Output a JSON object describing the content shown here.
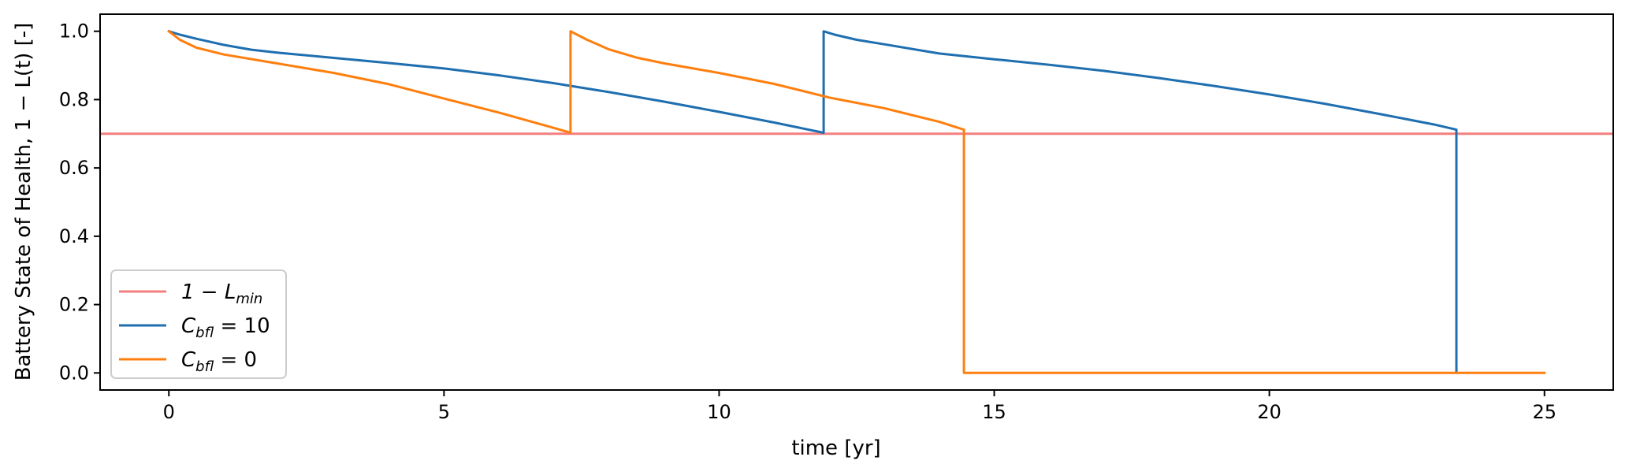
{
  "chart_data": {
    "type": "line",
    "xlabel": "time [yr]",
    "ylabel": "Battery State of Health, 1 − L(t) [-]",
    "xlim": [
      -1.25,
      26.25
    ],
    "ylim": [
      -0.05,
      1.05
    ],
    "xticks": [
      0,
      5,
      10,
      15,
      20,
      25
    ],
    "yticks": [
      0.0,
      0.2,
      0.4,
      0.6,
      0.8,
      1.0
    ],
    "grid": false,
    "legend_position": "lower-left",
    "hline": {
      "name": "1 − L_min",
      "name_base": "1 − L",
      "name_sub": "min",
      "y": 0.7,
      "color": "#f47f7f"
    },
    "series": [
      {
        "name": "C_bfl = 10",
        "name_base": "C",
        "name_sub": "bfl",
        "name_suffix": " = 10",
        "color": "#1f6fb0",
        "points": [
          [
            0,
            1.0
          ],
          [
            0.2,
            0.99
          ],
          [
            0.5,
            0.978
          ],
          [
            1.0,
            0.96
          ],
          [
            1.5,
            0.946
          ],
          [
            2.0,
            0.937
          ],
          [
            3.0,
            0.922
          ],
          [
            4.0,
            0.907
          ],
          [
            5.0,
            0.891
          ],
          [
            6.0,
            0.871
          ],
          [
            7.0,
            0.848
          ],
          [
            8.0,
            0.822
          ],
          [
            9.0,
            0.794
          ],
          [
            10.0,
            0.764
          ],
          [
            11.0,
            0.733
          ],
          [
            11.9,
            0.703
          ],
          [
            11.9,
            1.0
          ],
          [
            12.1,
            0.99
          ],
          [
            12.5,
            0.975
          ],
          [
            13.0,
            0.962
          ],
          [
            14.0,
            0.935
          ],
          [
            15.0,
            0.918
          ],
          [
            16.0,
            0.902
          ],
          [
            17.0,
            0.884
          ],
          [
            18.0,
            0.863
          ],
          [
            19.0,
            0.84
          ],
          [
            20.0,
            0.815
          ],
          [
            21.0,
            0.788
          ],
          [
            22.0,
            0.758
          ],
          [
            23.0,
            0.727
          ],
          [
            23.4,
            0.712
          ],
          [
            23.4,
            0.0
          ]
        ]
      },
      {
        "name": "C_bfl = 0",
        "name_base": "C",
        "name_sub": "bfl",
        "name_suffix": " = 0",
        "color": "#ff7f0e",
        "points": [
          [
            0,
            1.0
          ],
          [
            0.2,
            0.975
          ],
          [
            0.5,
            0.952
          ],
          [
            1.0,
            0.932
          ],
          [
            2.0,
            0.905
          ],
          [
            3.0,
            0.878
          ],
          [
            4.0,
            0.845
          ],
          [
            5.0,
            0.803
          ],
          [
            6.0,
            0.762
          ],
          [
            7.0,
            0.717
          ],
          [
            7.3,
            0.703
          ],
          [
            7.3,
            1.0
          ],
          [
            7.6,
            0.975
          ],
          [
            8.0,
            0.947
          ],
          [
            8.5,
            0.923
          ],
          [
            9.0,
            0.906
          ],
          [
            10.0,
            0.878
          ],
          [
            11.0,
            0.846
          ],
          [
            12.0,
            0.806
          ],
          [
            13.0,
            0.775
          ],
          [
            14.0,
            0.735
          ],
          [
            14.45,
            0.712
          ],
          [
            14.45,
            0.0
          ],
          [
            25.0,
            0.0
          ]
        ]
      }
    ]
  }
}
